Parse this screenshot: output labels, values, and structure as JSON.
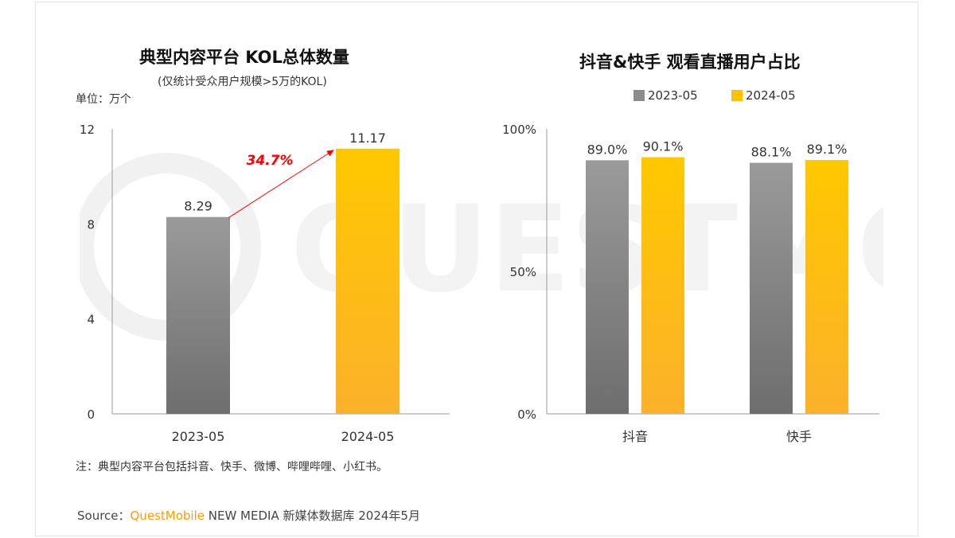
{
  "left": {
    "title": "典型内容平台 KOL总体数量",
    "subtitle": "(仅统计受众用户规模>5万的KOL)",
    "unit": "单位：万个",
    "growth_label": "34.7%",
    "note": "注：典型内容平台包括抖音、快手、微博、哔哩哔哩、小红书。"
  },
  "right": {
    "title": "抖音&快手 观看直播用户占比"
  },
  "source": {
    "prefix": "Source：",
    "brand": "QuestMobile",
    "rest": " NEW MEDIA 新媒体数据库 2024年5月"
  },
  "watermark": "QUESTMOBILE",
  "colors": {
    "gray": "#8c8c8c",
    "yellow": "#ffc000",
    "arrow": "#ff0000"
  },
  "chart_data": [
    {
      "type": "bar",
      "title": "典型内容平台 KOL总体数量",
      "categories": [
        "2023-05",
        "2024-05"
      ],
      "values": [
        8.29,
        11.17
      ],
      "value_labels": [
        "8.29",
        "11.17"
      ],
      "ylim": [
        0,
        12
      ],
      "yticks": [
        0,
        4,
        8,
        12
      ],
      "ytick_labels": [
        "0",
        "4",
        "8",
        "12"
      ],
      "ylabel": "单位：万个",
      "grid": false
    },
    {
      "type": "bar",
      "title": "抖音&快手 观看直播用户占比",
      "categories": [
        "抖音",
        "快手"
      ],
      "series": [
        {
          "name": "2023-05",
          "values": [
            89.0,
            88.1
          ],
          "labels": [
            "89.0%",
            "88.1%"
          ]
        },
        {
          "name": "2024-05",
          "values": [
            90.1,
            89.1
          ],
          "labels": [
            "90.1%",
            "89.1%"
          ]
        }
      ],
      "ylim": [
        0,
        100
      ],
      "yticks": [
        0,
        50,
        100
      ],
      "ytick_labels": [
        "0%",
        "50%",
        "100%"
      ],
      "legend": "top",
      "grid": false
    }
  ]
}
